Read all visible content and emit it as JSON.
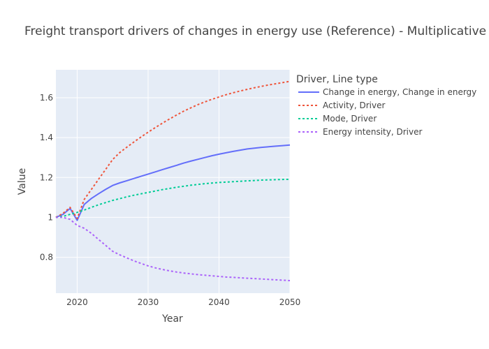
{
  "chart_data": {
    "type": "line",
    "title": "Freight transport drivers of changes in energy use (Reference) - Multiplicative",
    "xlabel": "Year",
    "ylabel": "Value",
    "xlim": [
      2017,
      2050
    ],
    "ylim": [
      0.62,
      1.74
    ],
    "xticks": [
      2020,
      2030,
      2040,
      2050
    ],
    "yticks": [
      0.8,
      1,
      1.2,
      1.4,
      1.6
    ],
    "ytick_labels": [
      "0.8",
      "1",
      "1.2",
      "1.4",
      "1.6"
    ],
    "grid": true,
    "background": "#e5ecf6",
    "legend": {
      "title": "Driver, Line type",
      "placement": "right"
    },
    "x": [
      2017,
      2018,
      2019,
      2020,
      2021,
      2022,
      2023,
      2024,
      2025,
      2026,
      2027,
      2028,
      2029,
      2030,
      2031,
      2032,
      2033,
      2034,
      2035,
      2036,
      2037,
      2038,
      2039,
      2040,
      2041,
      2042,
      2043,
      2044,
      2045,
      2046,
      2047,
      2048,
      2049,
      2050
    ],
    "series": [
      {
        "name": "Change in energy, Change in energy",
        "color": "#636efa",
        "dash": "solid",
        "values": [
          1.0,
          1.015,
          1.045,
          0.985,
          1.065,
          1.095,
          1.118,
          1.14,
          1.16,
          1.173,
          1.184,
          1.195,
          1.206,
          1.217,
          1.228,
          1.239,
          1.25,
          1.261,
          1.272,
          1.282,
          1.291,
          1.3,
          1.309,
          1.317,
          1.324,
          1.331,
          1.337,
          1.343,
          1.347,
          1.351,
          1.354,
          1.357,
          1.36,
          1.363
        ]
      },
      {
        "name": "Activity, Driver",
        "color": "#ef553b",
        "dash": "dot",
        "values": [
          1.0,
          1.02,
          1.05,
          0.995,
          1.09,
          1.14,
          1.19,
          1.24,
          1.29,
          1.325,
          1.352,
          1.378,
          1.403,
          1.427,
          1.45,
          1.472,
          1.493,
          1.513,
          1.532,
          1.549,
          1.565,
          1.579,
          1.592,
          1.604,
          1.615,
          1.625,
          1.634,
          1.642,
          1.65,
          1.657,
          1.664,
          1.67,
          1.676,
          1.682
        ]
      },
      {
        "name": "Mode, Driver",
        "color": "#00cc96",
        "dash": "dot",
        "values": [
          1.0,
          1.005,
          1.015,
          1.025,
          1.037,
          1.05,
          1.063,
          1.074,
          1.085,
          1.094,
          1.103,
          1.111,
          1.118,
          1.125,
          1.132,
          1.139,
          1.145,
          1.151,
          1.156,
          1.161,
          1.165,
          1.169,
          1.172,
          1.175,
          1.177,
          1.179,
          1.181,
          1.183,
          1.185,
          1.187,
          1.188,
          1.189,
          1.19,
          1.191
        ]
      },
      {
        "name": "Energy intensity, Driver",
        "color": "#ab63fa",
        "dash": "dot",
        "values": [
          1.0,
          1.0,
          0.99,
          0.96,
          0.945,
          0.92,
          0.89,
          0.86,
          0.83,
          0.812,
          0.797,
          0.782,
          0.769,
          0.757,
          0.747,
          0.739,
          0.732,
          0.726,
          0.721,
          0.717,
          0.713,
          0.71,
          0.707,
          0.704,
          0.701,
          0.699,
          0.697,
          0.695,
          0.693,
          0.691,
          0.689,
          0.687,
          0.685,
          0.683
        ]
      }
    ]
  }
}
